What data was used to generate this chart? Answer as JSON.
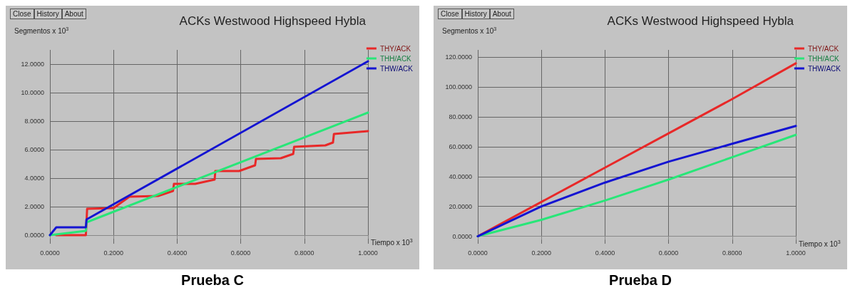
{
  "chart_data": [
    {
      "type": "line",
      "title": "ACKs Westwood Highspeed Hybla",
      "subtitle": "Prueba C",
      "xlabel": "Tiempo x 10$^{3}$",
      "ylabel": "Segmentos x 10$^{3}$",
      "annotations": [
        "Close",
        "History",
        "About"
      ],
      "grid": true,
      "legend": "top right",
      "marker": "none",
      "line_style": "solid",
      "xlim": [
        0,
        1
      ],
      "xticks": [
        {
          "value": 0,
          "label": "0.0000"
        },
        {
          "value": 0.2,
          "label": "0.2000"
        },
        {
          "value": 0.4,
          "label": "0.4000"
        },
        {
          "value": 0.6,
          "label": "0.6000"
        },
        {
          "value": 0.8,
          "label": "0.8000"
        },
        {
          "value": 1,
          "label": "1.0000"
        }
      ],
      "ylim": [
        -0.6,
        13
      ],
      "yticks": [
        {
          "value": 0,
          "label": "0.0000"
        },
        {
          "value": 2,
          "label": "2.0000"
        },
        {
          "value": 4,
          "label": "4.0000"
        },
        {
          "value": 6,
          "label": "6.0000"
        },
        {
          "value": 8,
          "label": "8.0000"
        },
        {
          "value": 10,
          "label": "10.0000"
        },
        {
          "value": 12,
          "label": "12.0000"
        }
      ],
      "series": [
        {
          "name": "THY/ACK",
          "color": "#e82828",
          "x": [
            0.02,
            0.113,
            0.117,
            0.2,
            0.25,
            0.34,
            0.387,
            0.39,
            0.457,
            0.518,
            0.52,
            0.595,
            0.645,
            0.648,
            0.726,
            0.765,
            0.768,
            0.866,
            0.89,
            0.893,
            1.0
          ],
          "values": [
            0,
            0,
            1.85,
            1.9,
            2.7,
            2.75,
            3.1,
            3.6,
            3.6,
            3.9,
            4.5,
            4.5,
            4.9,
            5.35,
            5.4,
            5.7,
            6.2,
            6.3,
            6.5,
            7.1,
            7.3
          ]
        },
        {
          "name": "THH/ACK",
          "color": "#28e678",
          "x": [
            0,
            0.113,
            0.115,
            1.0
          ],
          "values": [
            0,
            0.3,
            0.9,
            8.6
          ]
        },
        {
          "name": "THW/ACK",
          "color": "#1414d2",
          "x": [
            0,
            0.02,
            0.113,
            0.115,
            1.0
          ],
          "values": [
            0,
            0.55,
            0.55,
            1.1,
            12.2
          ]
        }
      ]
    },
    {
      "type": "line",
      "title": "ACKs Westwood Highspeed Hybla",
      "subtitle": "Prueba D",
      "xlabel": "Tiempo x 10$^{3}$",
      "ylabel": "Segmentos x 10$^{3}$",
      "annotations": [
        "Close",
        "History",
        "About"
      ],
      "grid": true,
      "legend": "top right",
      "marker": "none",
      "line_style": "solid",
      "xlim": [
        0,
        1
      ],
      "xticks": [
        {
          "value": 0,
          "label": "0.0000"
        },
        {
          "value": 0.2,
          "label": "0.2000"
        },
        {
          "value": 0.4,
          "label": "0.4000"
        },
        {
          "value": 0.6,
          "label": "0.6000"
        },
        {
          "value": 0.8,
          "label": "0.8000"
        },
        {
          "value": 1,
          "label": "1.0000"
        }
      ],
      "ylim": [
        -5,
        125
      ],
      "yticks": [
        {
          "value": 0,
          "label": "0.0000"
        },
        {
          "value": 20,
          "label": "20.0000"
        },
        {
          "value": 40,
          "label": "40.0000"
        },
        {
          "value": 60,
          "label": "60.0000"
        },
        {
          "value": 80,
          "label": "80.0000"
        },
        {
          "value": 100,
          "label": "100.0000"
        },
        {
          "value": 120,
          "label": "120.0000"
        }
      ],
      "series": [
        {
          "name": "THY/ACK",
          "color": "#e82828",
          "x": [
            0,
            0.2,
            0.4,
            0.6,
            0.8,
            1.0
          ],
          "values": [
            0,
            23,
            46,
            69,
            92,
            116
          ]
        },
        {
          "name": "THH/ACK",
          "color": "#28e678",
          "x": [
            0,
            0.2,
            0.4,
            0.6,
            0.8,
            1.0
          ],
          "values": [
            0,
            11,
            24,
            38,
            53,
            68
          ]
        },
        {
          "name": "THW/ACK",
          "color": "#1414d2",
          "x": [
            0,
            0.2,
            0.4,
            0.6,
            0.8,
            1.0
          ],
          "values": [
            0,
            20,
            36,
            50,
            62,
            74
          ]
        }
      ]
    }
  ]
}
